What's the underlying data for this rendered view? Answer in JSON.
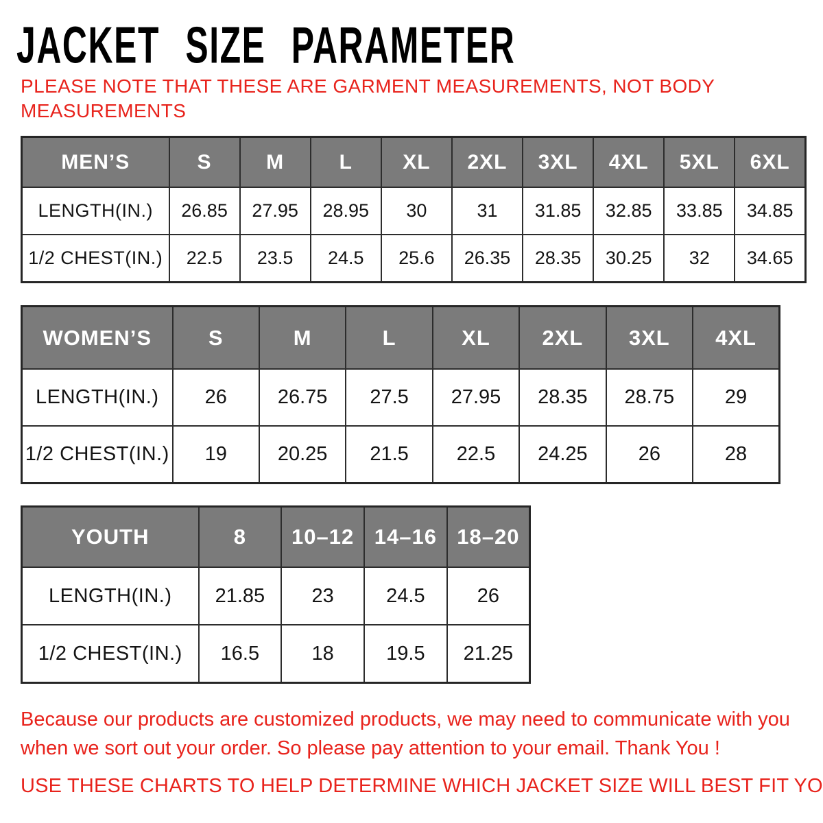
{
  "header": {
    "title": "JACKET SIZE PARAMETER",
    "note_lines": [
      "PLEASE NOTE THAT THESE ARE GARMENT MEASUREMENTS, NOT BODY",
      "MEASUREMENTS"
    ]
  },
  "tables": [
    {
      "id": "mens",
      "header": [
        "MEN’S",
        "S",
        "M",
        "L",
        "XL",
        "2XL",
        "3XL",
        "4XL",
        "5XL",
        "6XL"
      ],
      "rows": [
        [
          "LENGTH(IN.)",
          "26.85",
          "27.95",
          "28.95",
          "30",
          "31",
          "31.85",
          "32.85",
          "33.85",
          "34.85"
        ],
        [
          "1/2 CHEST(IN.)",
          "22.5",
          "23.5",
          "24.5",
          "25.6",
          "26.35",
          "28.35",
          "30.25",
          "32",
          "34.65"
        ]
      ]
    },
    {
      "id": "womens",
      "header": [
        "WOMEN’S",
        "S",
        "M",
        "L",
        "XL",
        "2XL",
        "3XL",
        "4XL"
      ],
      "rows": [
        [
          "LENGTH(IN.)",
          "26",
          "26.75",
          "27.5",
          "27.95",
          "28.35",
          "28.75",
          "29"
        ],
        [
          "1/2 CHEST(IN.)",
          "19",
          "20.25",
          "21.5",
          "22.5",
          "24.25",
          "26",
          "28"
        ]
      ]
    },
    {
      "id": "youth",
      "header": [
        "YOUTH",
        "8",
        "10–12",
        "14–16",
        "18–20"
      ],
      "rows": [
        [
          "LENGTH(IN.)",
          "21.85",
          "23",
          "24.5",
          "26"
        ],
        [
          "1/2 CHEST(IN.)",
          "16.5",
          "18",
          "19.5",
          "21.25"
        ]
      ]
    }
  ],
  "footer": {
    "para1_lines": [
      "Because our products are customized products, we may need to communicate with you",
      "when we sort out your order. So please pay attention to your email. Thank You !"
    ],
    "para2": "USE THESE CHARTS TO HELP DETERMINE WHICH JACKET SIZE WILL BEST FIT YOU."
  },
  "colors": {
    "accent_red": "#e8231c",
    "header_gray": "#7b7b7b",
    "header_text": "#ffffff",
    "border_dark": "#2d2d2d",
    "title_black": "#000000"
  }
}
